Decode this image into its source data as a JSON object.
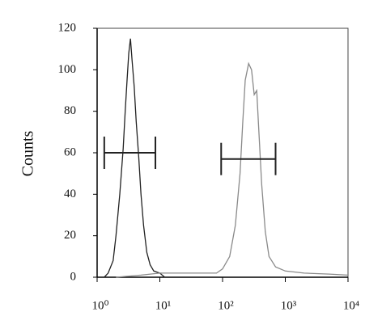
{
  "chart_data": {
    "type": "line",
    "y_label": "Counts",
    "x_scale": "log",
    "xlim": [
      1,
      10000
    ],
    "ylim": [
      0,
      120
    ],
    "xticks": [
      {
        "value": 1,
        "label": "10⁰"
      },
      {
        "value": 10,
        "label": "10¹"
      },
      {
        "value": 100,
        "label": "10²"
      },
      {
        "value": 1000,
        "label": "10³"
      },
      {
        "value": 10000,
        "label": "10⁴"
      }
    ],
    "yticks": [
      0,
      20,
      40,
      60,
      80,
      100,
      120
    ],
    "series": [
      {
        "color": "#222222",
        "x": [
          1.3,
          1.5,
          1.8,
          2.0,
          2.3,
          2.6,
          2.8,
          3.0,
          3.2,
          3.4,
          3.6,
          3.9,
          4.2,
          4.6,
          5.0,
          5.5,
          6.2,
          7.0,
          8.0,
          10,
          12
        ],
        "values": [
          0,
          2,
          8,
          20,
          40,
          62,
          80,
          95,
          108,
          115,
          105,
          92,
          75,
          58,
          40,
          25,
          12,
          6,
          3,
          2,
          0
        ]
      },
      {
        "color": "#8a8a8a",
        "x": [
          2,
          5,
          10,
          30,
          80,
          100,
          130,
          160,
          190,
          210,
          230,
          260,
          290,
          320,
          350,
          380,
          420,
          480,
          550,
          700,
          1000,
          2000,
          5000,
          10000
        ],
        "values": [
          0,
          1,
          2,
          2,
          2,
          4,
          10,
          25,
          50,
          75,
          95,
          103,
          100,
          88,
          90,
          70,
          45,
          22,
          10,
          5,
          3,
          2,
          1.5,
          1
        ]
      }
    ],
    "gates": [
      {
        "x": [
          1.3,
          8.5
        ],
        "y": 60
      },
      {
        "x": [
          95,
          700
        ],
        "y": 57
      }
    ]
  }
}
